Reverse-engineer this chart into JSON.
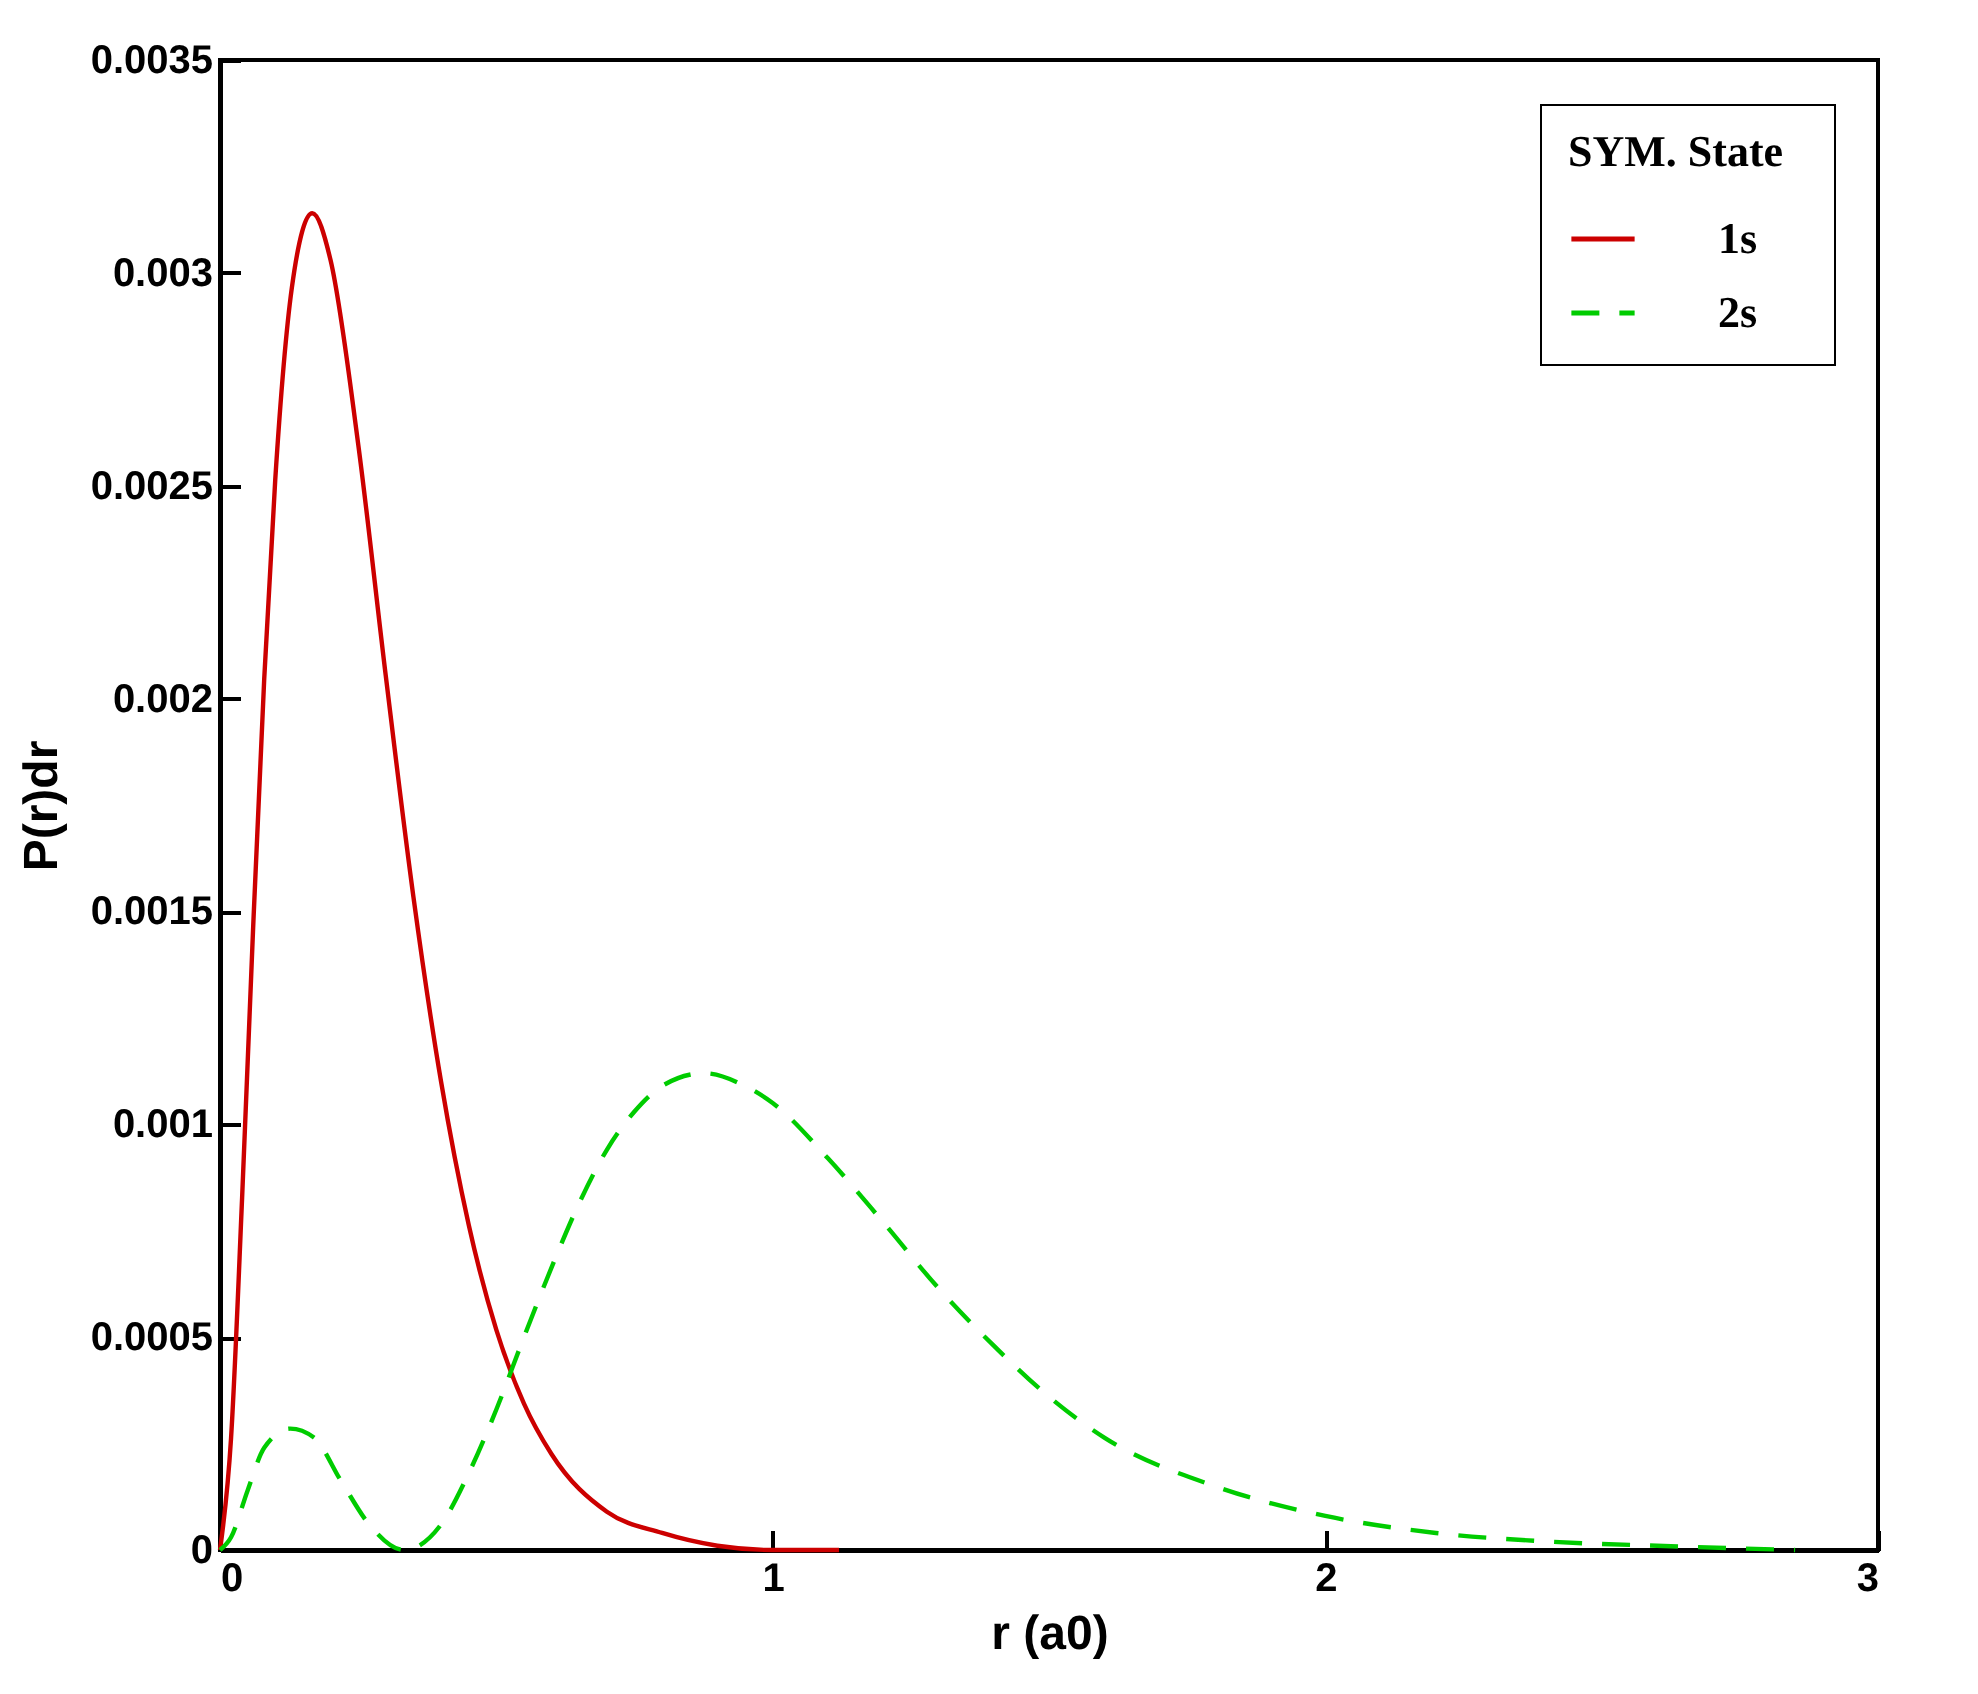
{
  "chart_data": {
    "type": "line",
    "xlabel": "r (a0)",
    "ylabel": "P(r)dr",
    "legend_title": "SYM.   State",
    "legend": "top right",
    "grid": false,
    "xlim": [
      0,
      3
    ],
    "xticks": [
      0,
      1,
      2,
      3
    ],
    "ylim": [
      0,
      0.0035
    ],
    "yticks": [
      0,
      0.0005,
      0.001,
      0.0015,
      0.002,
      0.0025,
      0.003,
      0.0035
    ],
    "series": [
      {
        "name": "1s",
        "color": "#cc0000",
        "line_style": "solid",
        "x": [
          0,
          0.02,
          0.04,
          0.06,
          0.08,
          0.1,
          0.13,
          0.167,
          0.2,
          0.25,
          0.3,
          0.35,
          0.4,
          0.45,
          0.5,
          0.55,
          0.6,
          0.7,
          0.8,
          0.9,
          1.0,
          1.12
        ],
        "values": [
          0,
          0.000263,
          0.000827,
          0.001463,
          0.002046,
          0.002515,
          0.002965,
          0.00314,
          0.00303,
          0.002598,
          0.002053,
          0.001534,
          0.0011,
          0.000764,
          0.000517,
          0.000344,
          0.000225,
          9e-05,
          4e-05,
          1e-05,
          0,
          0
        ]
      },
      {
        "name": "2s",
        "color": "#00cc00",
        "line_style": "dashed",
        "x": [
          0,
          0.02,
          0.05,
          0.08,
          0.127,
          0.17,
          0.22,
          0.27,
          0.333,
          0.4,
          0.45,
          0.5,
          0.55,
          0.6,
          0.65,
          0.7,
          0.75,
          0.8,
          0.876,
          0.95,
          1.0,
          1.1,
          1.2,
          1.3,
          1.4,
          1.5,
          1.6,
          1.8,
          2.0,
          2.2,
          2.4,
          2.6,
          2.85
        ],
        "values": [
          0,
          3e-05,
          0.00014,
          0.00024,
          0.000285,
          0.000264,
          0.00016,
          6e-05,
          0,
          6e-05,
          0.00018,
          0.00033,
          0.0005,
          0.000664,
          0.000815,
          0.00094,
          0.00103,
          0.00109,
          0.00112,
          0.00109,
          0.00105,
          0.00092,
          0.00077,
          0.000615,
          0.00048,
          0.00036,
          0.000264,
          0.00015,
          8e-05,
          4e-05,
          2e-05,
          1e-05,
          0
        ]
      }
    ]
  }
}
